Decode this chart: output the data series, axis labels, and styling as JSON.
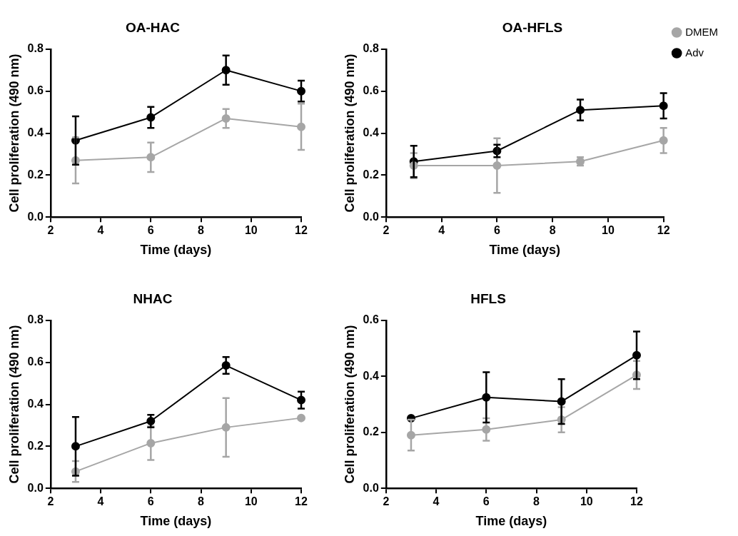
{
  "chart_data": [
    {
      "type": "line",
      "title": "OA-HAC",
      "xlabel": "Time (days)",
      "ylabel": "Cell proliferation (490 nm)",
      "x": [
        3,
        6,
        9,
        12
      ],
      "xlim": [
        2,
        12
      ],
      "xticks": [
        2,
        4,
        6,
        8,
        10,
        12
      ],
      "ylim": [
        0,
        0.8
      ],
      "yticks": [
        {
          "value": 0,
          "label": "0.0"
        },
        {
          "value": 0.2,
          "label": "0.2"
        },
        {
          "value": 0.4,
          "label": "0.4"
        },
        {
          "value": 0.6,
          "label": "0.6"
        },
        {
          "value": 0.8,
          "label": "0.8"
        }
      ],
      "marker": "circle",
      "legend": false,
      "series": [
        {
          "color": "#a6a6a6",
          "values": [
            0.27,
            0.285,
            0.47,
            0.43
          ],
          "errors": [
            0.11,
            0.07,
            0.045,
            0.11
          ]
        },
        {
          "color": "#000000",
          "values": [
            0.365,
            0.475,
            0.7,
            0.6
          ],
          "errors": [
            0.115,
            0.05,
            0.07,
            0.05
          ]
        }
      ]
    },
    {
      "type": "line",
      "title": "OA-HFLS",
      "xlabel": "Time (days)",
      "ylabel": "Cell proliferation (490 nm)",
      "x": [
        3,
        6,
        9,
        12
      ],
      "xlim": [
        2,
        12
      ],
      "xticks": [
        2,
        4,
        6,
        8,
        10,
        12
      ],
      "ylim": [
        0,
        0.8
      ],
      "yticks": [
        {
          "value": 0,
          "label": "0.0"
        },
        {
          "value": 0.2,
          "label": "0.2"
        },
        {
          "value": 0.4,
          "label": "0.4"
        },
        {
          "value": 0.6,
          "label": "0.6"
        },
        {
          "value": 0.8,
          "label": "0.8"
        }
      ],
      "marker": "circle",
      "legend": "top right",
      "series": [
        {
          "name": "DMEM",
          "color": "#a6a6a6",
          "values": [
            0.245,
            0.245,
            0.265,
            0.365
          ],
          "errors": [
            0.06,
            0.13,
            0.02,
            0.06
          ]
        },
        {
          "name": "Adv",
          "color": "#000000",
          "values": [
            0.265,
            0.315,
            0.51,
            0.53
          ],
          "errors": [
            0.075,
            0.03,
            0.05,
            0.06
          ]
        }
      ]
    },
    {
      "type": "line",
      "title": "NHAC",
      "xlabel": "Time (days)",
      "ylabel": "Cell proliferation (490 nm)",
      "x": [
        3,
        6,
        9,
        12
      ],
      "xlim": [
        2,
        12
      ],
      "xticks": [
        2,
        4,
        6,
        8,
        10,
        12
      ],
      "ylim": [
        0,
        0.8
      ],
      "yticks": [
        {
          "value": 0,
          "label": "0.0"
        },
        {
          "value": 0.2,
          "label": "0.2"
        },
        {
          "value": 0.4,
          "label": "0.4"
        },
        {
          "value": 0.6,
          "label": "0.6"
        },
        {
          "value": 0.8,
          "label": "0.8"
        }
      ],
      "marker": "circle",
      "legend": false,
      "series": [
        {
          "color": "#a6a6a6",
          "values": [
            0.08,
            0.215,
            0.29,
            0.335
          ],
          "errors": [
            0.05,
            0.08,
            0.14,
            null
          ]
        },
        {
          "color": "#000000",
          "values": [
            0.2,
            0.32,
            0.585,
            0.42
          ],
          "errors": [
            0.14,
            0.03,
            0.04,
            0.04
          ]
        }
      ]
    },
    {
      "type": "line",
      "title": "HFLS",
      "xlabel": "Time (days)",
      "ylabel": "Cell proliferation (490 nm)",
      "x": [
        3,
        6,
        9,
        12
      ],
      "xlim": [
        2,
        12
      ],
      "xticks": [
        2,
        4,
        6,
        8,
        10,
        12
      ],
      "ylim": [
        0,
        0.6
      ],
      "yticks": [
        {
          "value": 0,
          "label": "0.0"
        },
        {
          "value": 0.2,
          "label": "0.2"
        },
        {
          "value": 0.4,
          "label": "0.4"
        },
        {
          "value": 0.6,
          "label": "0.6"
        }
      ],
      "marker": "circle",
      "legend": false,
      "series": [
        {
          "color": "#a6a6a6",
          "values": [
            0.19,
            0.21,
            0.245,
            0.405
          ],
          "errors": [
            0.055,
            0.04,
            0.045,
            0.05
          ]
        },
        {
          "color": "#000000",
          "values": [
            0.25,
            0.325,
            0.31,
            0.475
          ],
          "errors": [
            null,
            0.09,
            0.08,
            0.085
          ]
        }
      ]
    }
  ]
}
